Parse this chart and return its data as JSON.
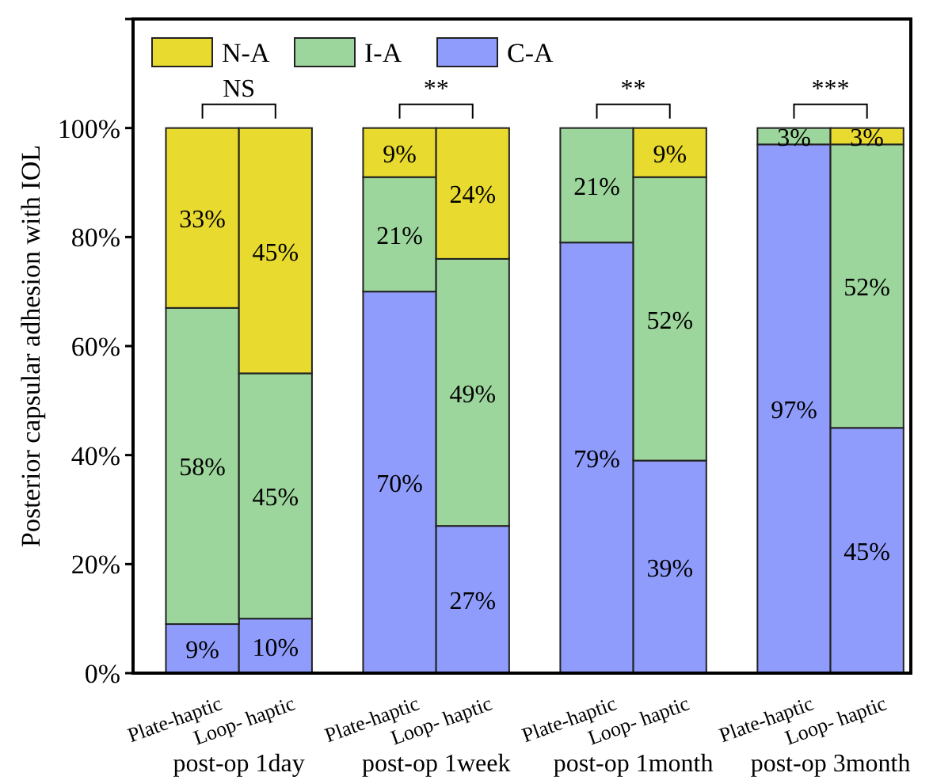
{
  "chart_data": {
    "type": "bar",
    "stacked": true,
    "ylabel": "Posterior capsular adhesion with IOL",
    "categories": [
      "Plate-haptic",
      "Loop- haptic",
      "Plate-haptic",
      "Loop- haptic",
      "Plate-haptic",
      "Loop- haptic",
      "Plate-haptic",
      "Loop- haptic"
    ],
    "series": [
      {
        "name": "C-A",
        "color": "#8f9cfc",
        "values": [
          9,
          10,
          70,
          27,
          79,
          39,
          97,
          45
        ],
        "value_labels": [
          "9%",
          "10%",
          "70%",
          "27%",
          "79%",
          "39%",
          "97%",
          "45%"
        ]
      },
      {
        "name": "I-A",
        "color": "#9dd69c",
        "values": [
          58,
          45,
          21,
          49,
          21,
          52,
          3,
          52
        ],
        "value_labels": [
          "58%",
          "45%",
          "21%",
          "49%",
          "21%",
          "52%",
          "3%",
          "52%"
        ]
      },
      {
        "name": "N-A",
        "color": "#e8da2e",
        "values": [
          33,
          45,
          9,
          24,
          0,
          9,
          0,
          3
        ],
        "value_labels": [
          "33%",
          "45%",
          "9%",
          "24%",
          null,
          "9%",
          null,
          "3%"
        ]
      }
    ],
    "ylim": [
      0,
      120
    ],
    "yticks": [
      {
        "value": 0,
        "label": "0%"
      },
      {
        "value": 20,
        "label": "20%"
      },
      {
        "value": 40,
        "label": "40%"
      },
      {
        "value": 60,
        "label": "60%"
      },
      {
        "value": 80,
        "label": "80%"
      },
      {
        "value": 100,
        "label": "100%"
      },
      {
        "value": 120,
        "label": null
      }
    ],
    "annotations": [
      "NS",
      "**",
      "**",
      "***",
      "post-op 1day",
      "post-op 1week",
      "post-op 1month",
      "post-op 3month"
    ],
    "legend": "top left",
    "grid": false
  }
}
